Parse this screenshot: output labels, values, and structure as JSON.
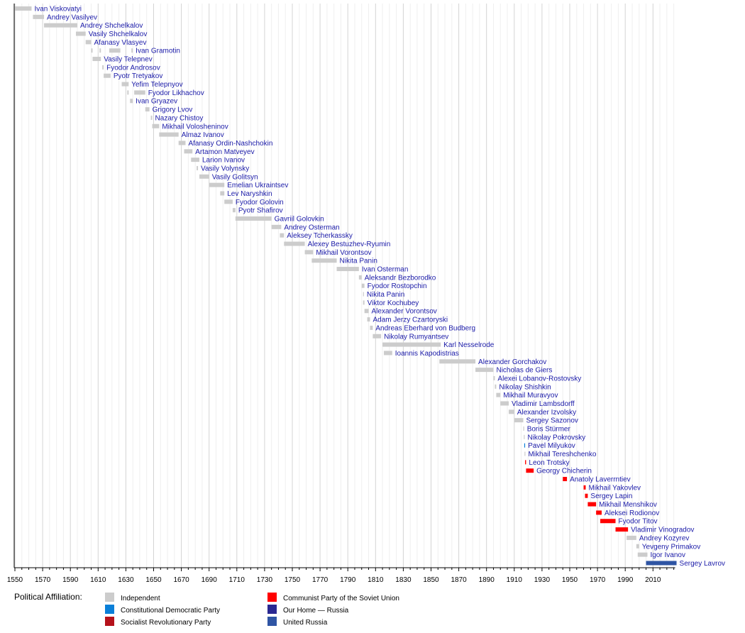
{
  "chart_data": {
    "type": "bar",
    "orientation": "horizontal-timeline",
    "xlim": [
      1550,
      2026
    ],
    "major_ticks": [
      1550,
      1570,
      1590,
      1610,
      1630,
      1650,
      1670,
      1690,
      1710,
      1730,
      1750,
      1770,
      1790,
      1810,
      1830,
      1850,
      1870,
      1890,
      1910,
      1930,
      1950,
      1970,
      1990,
      2010
    ],
    "minor_tick_step": 5,
    "grid": true,
    "legend": {
      "title": "Political Affiliation:",
      "placement": "bottom-left",
      "entries": [
        {
          "name": "Independent",
          "color": "#cccccc"
        },
        {
          "name": "Constitutional Democratic Party",
          "color": "#0a7fd8"
        },
        {
          "name": "Socialist Revolutionary Party",
          "color": "#b5121b"
        },
        {
          "name": "Communist Party of the Soviet Union",
          "color": "#ff0000"
        },
        {
          "name": "Our Home — Russia",
          "color": "#2a2892"
        },
        {
          "name": "United Russia",
          "color": "#2f55a4"
        }
      ]
    },
    "rows": [
      {
        "name": "Ivan Viskovatyi",
        "party": 0,
        "terms": [
          [
            1550,
            1562
          ]
        ]
      },
      {
        "name": "Andrey Vasilyev",
        "party": 0,
        "terms": [
          [
            1563,
            1571
          ]
        ]
      },
      {
        "name": "Andrey Shchelkalov",
        "party": 0,
        "terms": [
          [
            1571,
            1595
          ]
        ]
      },
      {
        "name": "Vasily Shchelkalov",
        "party": 0,
        "terms": [
          [
            1594,
            1601
          ]
        ]
      },
      {
        "name": "Afanasy Vlasyev",
        "party": 0,
        "terms": [
          [
            1601,
            1605
          ]
        ]
      },
      {
        "name": "Ivan Gramotin",
        "party": 0,
        "terms": [
          [
            1605,
            1606
          ],
          [
            1611,
            1612
          ],
          [
            1618,
            1626
          ],
          [
            1634,
            1635
          ]
        ]
      },
      {
        "name": "Vasily Telepnev",
        "party": 0,
        "terms": [
          [
            1606,
            1612
          ]
        ]
      },
      {
        "name": "Fyodor Androsov",
        "party": 0,
        "terms": [
          [
            1613,
            1614
          ]
        ]
      },
      {
        "name": "Pyotr Tretyakov",
        "party": 0,
        "terms": [
          [
            1614,
            1619
          ]
        ]
      },
      {
        "name": "Yefim Telepnyov",
        "party": 0,
        "terms": [
          [
            1627,
            1632
          ]
        ]
      },
      {
        "name": "Fyodor Likhachov",
        "party": 0,
        "terms": [
          [
            1631,
            1632
          ],
          [
            1636,
            1644
          ]
        ]
      },
      {
        "name": "Ivan Gryazev",
        "party": 0,
        "terms": [
          [
            1633,
            1635
          ]
        ]
      },
      {
        "name": "Grigory Lvov",
        "party": 0,
        "terms": [
          [
            1644,
            1647
          ]
        ]
      },
      {
        "name": "Nazary Chistoy",
        "party": 0,
        "terms": [
          [
            1648,
            1649
          ]
        ]
      },
      {
        "name": "Mikhail Volosheninov",
        "party": 0,
        "terms": [
          [
            1649,
            1654
          ]
        ]
      },
      {
        "name": "Almaz Ivanov",
        "party": 0,
        "terms": [
          [
            1654,
            1668
          ]
        ]
      },
      {
        "name": "Afanasy Ordin-Nashchokin",
        "party": 0,
        "terms": [
          [
            1668,
            1673
          ]
        ]
      },
      {
        "name": "Artamon Matveyev",
        "party": 0,
        "terms": [
          [
            1672,
            1678
          ]
        ]
      },
      {
        "name": "Larion Ivanov",
        "party": 0,
        "terms": [
          [
            1677,
            1683
          ]
        ]
      },
      {
        "name": "Vasily Volynsky",
        "party": 0,
        "terms": [
          [
            1681,
            1682
          ]
        ]
      },
      {
        "name": "Vasily Golitsyn",
        "party": 0,
        "terms": [
          [
            1683,
            1690
          ]
        ]
      },
      {
        "name": "Emelian Ukraintsev",
        "party": 0,
        "terms": [
          [
            1690,
            1701
          ]
        ]
      },
      {
        "name": "Lev Naryshkin",
        "party": 0,
        "terms": [
          [
            1698,
            1701
          ]
        ]
      },
      {
        "name": "Fyodor Golovin",
        "party": 0,
        "terms": [
          [
            1701,
            1707
          ]
        ]
      },
      {
        "name": "Pyotr Shafirov",
        "party": 0,
        "terms": [
          [
            1707,
            1709
          ]
        ]
      },
      {
        "name": "Gavriil Golovkin",
        "party": 0,
        "terms": [
          [
            1709,
            1735
          ]
        ]
      },
      {
        "name": "Andrey Osterman",
        "party": 0,
        "terms": [
          [
            1735,
            1742
          ]
        ]
      },
      {
        "name": "Aleksey Tcherkassky",
        "party": 0,
        "terms": [
          [
            1741,
            1744
          ]
        ]
      },
      {
        "name": "Alexey Bestuzhev-Ryumin",
        "party": 0,
        "terms": [
          [
            1744,
            1759
          ]
        ]
      },
      {
        "name": "Mikhail Vorontsov",
        "party": 0,
        "terms": [
          [
            1759,
            1765
          ]
        ]
      },
      {
        "name": "Nikita Panin",
        "party": 0,
        "terms": [
          [
            1764,
            1782
          ]
        ]
      },
      {
        "name": "Ivan Osterman",
        "party": 0,
        "terms": [
          [
            1782,
            1798
          ]
        ]
      },
      {
        "name": "Aleksandr Bezborodko",
        "party": 0,
        "terms": [
          [
            1798,
            1800
          ]
        ]
      },
      {
        "name": "Fyodor Rostopchin",
        "party": 0,
        "terms": [
          [
            1800,
            1802
          ]
        ]
      },
      {
        "name": "Nikita Panin",
        "party": 0,
        "terms": [
          [
            1801,
            1801.6
          ]
        ]
      },
      {
        "name": "Viktor Kochubey",
        "party": 0,
        "terms": [
          [
            1801,
            1802
          ]
        ]
      },
      {
        "name": "Alexander Vorontsov",
        "party": 0,
        "terms": [
          [
            1802,
            1805
          ]
        ]
      },
      {
        "name": "Adam Jerzy Czartoryski",
        "party": 0,
        "terms": [
          [
            1804,
            1806
          ]
        ]
      },
      {
        "name": "Andreas Eberhard von Budberg",
        "party": 0,
        "terms": [
          [
            1806,
            1808
          ]
        ]
      },
      {
        "name": "Nikolay Rumyantsev",
        "party": 0,
        "terms": [
          [
            1808,
            1814
          ]
        ]
      },
      {
        "name": "Karl Nesselrode",
        "party": 0,
        "terms": [
          [
            1815,
            1857
          ]
        ]
      },
      {
        "name": "Ioannis Kapodistrias",
        "party": 0,
        "terms": [
          [
            1816,
            1822
          ]
        ]
      },
      {
        "name": "Alexander Gorchakov",
        "party": 0,
        "terms": [
          [
            1856,
            1882
          ]
        ]
      },
      {
        "name": "Nicholas de Giers",
        "party": 0,
        "terms": [
          [
            1882,
            1895
          ]
        ]
      },
      {
        "name": "Alexei Lobanov-Rostovsky",
        "party": 0,
        "terms": [
          [
            1895,
            1896
          ]
        ]
      },
      {
        "name": "Nikolay Shishkin",
        "party": 0,
        "terms": [
          [
            1896,
            1897
          ]
        ]
      },
      {
        "name": "Mikhail Muravyov",
        "party": 0,
        "terms": [
          [
            1897,
            1900
          ]
        ]
      },
      {
        "name": "Vladimir Lambsdorff",
        "party": 0,
        "terms": [
          [
            1900,
            1906
          ]
        ]
      },
      {
        "name": "Alexander Izvolsky",
        "party": 0,
        "terms": [
          [
            1906,
            1910
          ]
        ]
      },
      {
        "name": "Sergey Sazonov",
        "party": 0,
        "terms": [
          [
            1910,
            1916.5
          ]
        ]
      },
      {
        "name": "Boris Stürmer",
        "party": 0,
        "terms": [
          [
            1916.5,
            1916.9
          ]
        ]
      },
      {
        "name": "Nikolay Pokrovsky",
        "party": 0,
        "terms": [
          [
            1916.9,
            1917.2
          ]
        ]
      },
      {
        "name": "Pavel Milyukov",
        "party": 1,
        "terms": [
          [
            1917.2,
            1917.4
          ]
        ]
      },
      {
        "name": "Mikhail Tereshchenko",
        "party": 0,
        "terms": [
          [
            1917.4,
            1917.8
          ]
        ]
      },
      {
        "name": "Leon Trotsky",
        "party": 3,
        "terms": [
          [
            1917.8,
            1918.5
          ]
        ]
      },
      {
        "name": "Georgy Chicherin",
        "party": 3,
        "terms": [
          [
            1918.5,
            1924
          ]
        ]
      },
      {
        "name": "Anatoly Laverrntiev",
        "party": 3,
        "terms": [
          [
            1945,
            1948
          ]
        ]
      },
      {
        "name": "Mikhail Yakovlev",
        "party": 3,
        "terms": [
          [
            1960,
            1961.5
          ]
        ]
      },
      {
        "name": "Sergey Lapin",
        "party": 3,
        "terms": [
          [
            1961,
            1963
          ]
        ]
      },
      {
        "name": "Mikhail Menshikov",
        "party": 3,
        "terms": [
          [
            1963,
            1969
          ]
        ]
      },
      {
        "name": "Aleksei Rodionov",
        "party": 3,
        "terms": [
          [
            1969,
            1973
          ]
        ]
      },
      {
        "name": "Fyodor Titov",
        "party": 3,
        "terms": [
          [
            1972,
            1983
          ]
        ]
      },
      {
        "name": "Vladimir Vinogradov",
        "party": 3,
        "terms": [
          [
            1983,
            1992
          ]
        ]
      },
      {
        "name": "Andrey Kozyrev",
        "party": 0,
        "terms": [
          [
            1991,
            1998
          ]
        ]
      },
      {
        "name": "Yevgeny Primakov",
        "party": 0,
        "terms": [
          [
            1998,
            2000
          ]
        ]
      },
      {
        "name": "Igor Ivanov",
        "party": 0,
        "terms": [
          [
            1999,
            2006
          ]
        ]
      },
      {
        "name": "Sergey Lavrov",
        "party": 5,
        "terms": [
          [
            2005,
            2027
          ]
        ]
      }
    ]
  }
}
